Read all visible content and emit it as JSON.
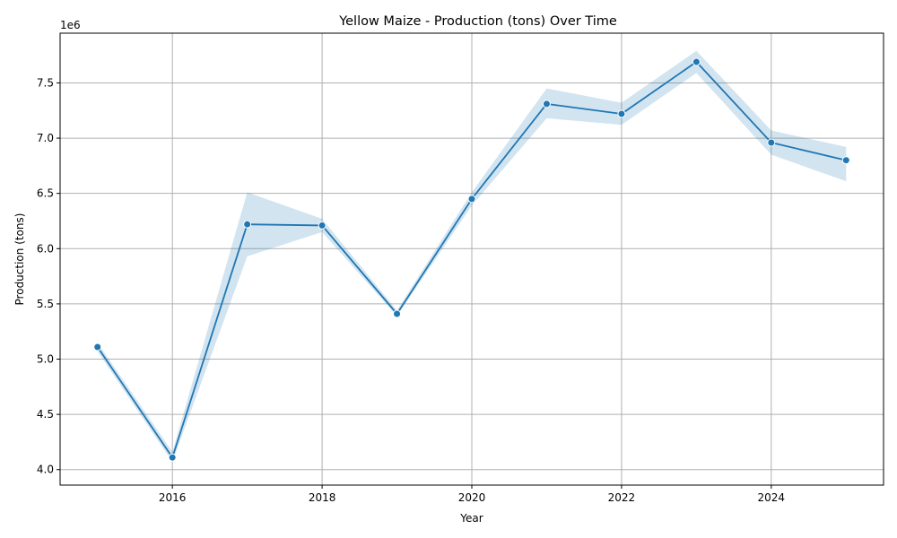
{
  "chart_data": {
    "type": "line",
    "title": "Yellow Maize - Production (tons) Over Time",
    "xlabel": "Year",
    "ylabel": "Production (tons)",
    "y_offset_label": "1e6",
    "xlim": [
      2014.5,
      2025.5
    ],
    "ylim": [
      3860000,
      7950000
    ],
    "x_ticks": [
      2016,
      2018,
      2020,
      2022,
      2024
    ],
    "y_ticks": [
      4000000,
      4500000,
      5000000,
      5500000,
      6000000,
      6500000,
      7000000,
      7500000
    ],
    "y_tick_labels": [
      "4.0",
      "4.5",
      "5.0",
      "5.5",
      "6.0",
      "6.5",
      "7.0",
      "7.5"
    ],
    "grid": true,
    "colors": {
      "line": "#1f77b4",
      "band": "#1f77b4",
      "grid": "#b0b0b0"
    },
    "series": [
      {
        "x": [
          2015,
          2016,
          2017,
          2018,
          2019,
          2020,
          2021,
          2022,
          2023,
          2024,
          2025
        ],
        "values": [
          5110000,
          4110000,
          6220000,
          6210000,
          5410000,
          6450000,
          7310000,
          7220000,
          7690000,
          6960000,
          6800000
        ],
        "ci_low": [
          5070000,
          4070000,
          5930000,
          6150000,
          5390000,
          6390000,
          7180000,
          7120000,
          7590000,
          6850000,
          6610000
        ],
        "ci_high": [
          5150000,
          4160000,
          6510000,
          6270000,
          5440000,
          6510000,
          7450000,
          7320000,
          7790000,
          7070000,
          6920000
        ]
      }
    ]
  }
}
